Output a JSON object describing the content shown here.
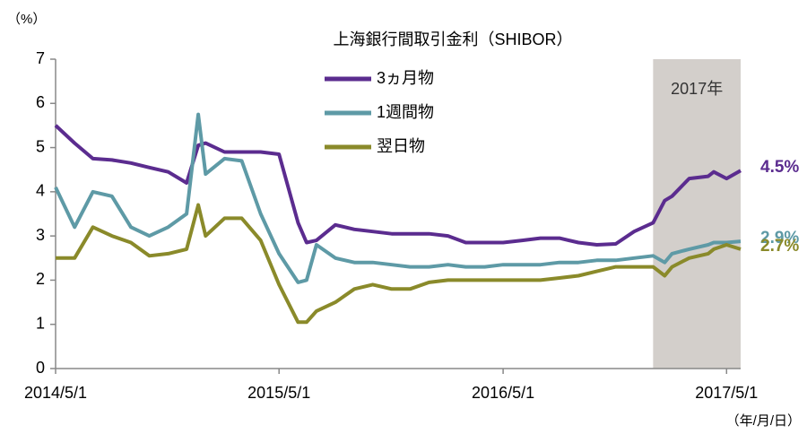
{
  "chart_data": {
    "type": "line",
    "title": "上海銀行間取引金利（SHIBOR）",
    "y_unit": "（%）",
    "x_unit": "（年/月/日）",
    "x": [
      "2014/5/1",
      "2014/6/1",
      "2014/7/1",
      "2014/8/1",
      "2014/9/1",
      "2014/10/1",
      "2014/11/1",
      "2014/12/1",
      "2014/12/20",
      "2015/1/1",
      "2015/2/1",
      "2015/3/1",
      "2015/4/1",
      "2015/5/1",
      "2015/6/1",
      "2015/6/15",
      "2015/7/1",
      "2015/8/1",
      "2015/9/1",
      "2015/10/1",
      "2015/11/1",
      "2015/12/1",
      "2016/1/1",
      "2016/2/1",
      "2016/3/1",
      "2016/4/1",
      "2016/5/1",
      "2016/6/1",
      "2016/7/1",
      "2016/8/1",
      "2016/9/1",
      "2016/10/1",
      "2016/11/1",
      "2016/12/1",
      "2017/1/1",
      "2017/1/20",
      "2017/2/1",
      "2017/3/1",
      "2017/4/1",
      "2017/4/10",
      "2017/5/1",
      "2017/5/24"
    ],
    "series": [
      {
        "name": "3ヵ月物",
        "color": "#5b2c8f",
        "end_label": "4.5%",
        "values": [
          5.5,
          5.1,
          4.75,
          4.72,
          4.65,
          4.55,
          4.45,
          4.2,
          5.05,
          5.1,
          4.9,
          4.9,
          4.9,
          4.85,
          3.3,
          2.85,
          2.9,
          3.25,
          3.15,
          3.1,
          3.05,
          3.05,
          3.05,
          3.0,
          2.85,
          2.85,
          2.85,
          2.9,
          2.95,
          2.95,
          2.85,
          2.8,
          2.82,
          3.1,
          3.3,
          3.8,
          3.9,
          4.3,
          4.35,
          4.45,
          4.3,
          4.48
        ]
      },
      {
        "name": "1週間物",
        "color": "#5e9aa6",
        "end_label": "2.9%",
        "values": [
          4.1,
          3.2,
          4.0,
          3.9,
          3.2,
          3.0,
          3.2,
          3.5,
          5.75,
          4.4,
          4.75,
          4.7,
          3.5,
          2.6,
          1.95,
          2.0,
          2.8,
          2.5,
          2.4,
          2.4,
          2.35,
          2.3,
          2.3,
          2.35,
          2.3,
          2.3,
          2.35,
          2.35,
          2.35,
          2.4,
          2.4,
          2.45,
          2.45,
          2.5,
          2.55,
          2.4,
          2.6,
          2.7,
          2.8,
          2.85,
          2.85,
          2.88
        ]
      },
      {
        "name": "翌日物",
        "color": "#8a8a2a",
        "end_label": "2.7%",
        "values": [
          2.5,
          2.5,
          3.2,
          3.0,
          2.85,
          2.55,
          2.6,
          2.7,
          3.7,
          3.0,
          3.4,
          3.4,
          2.9,
          1.9,
          1.05,
          1.05,
          1.3,
          1.5,
          1.8,
          1.9,
          1.8,
          1.8,
          1.95,
          2.0,
          2.0,
          2.0,
          2.0,
          2.0,
          2.0,
          2.05,
          2.1,
          2.2,
          2.3,
          2.3,
          2.3,
          2.1,
          2.3,
          2.5,
          2.6,
          2.7,
          2.8,
          2.7
        ]
      }
    ],
    "shade": {
      "from": "2017/1/1",
      "to": "2017/5/24",
      "label": "2017年",
      "color": "#d3cfcb"
    },
    "xlim": [
      "2014/5/1",
      "2017/5/24"
    ],
    "xticks": [
      "2014/5/1",
      "2015/5/1",
      "2016/5/1",
      "2017/5/1"
    ],
    "ylim": [
      0,
      7
    ],
    "yticks": [
      0,
      1,
      2,
      3,
      4,
      5,
      6,
      7
    ],
    "grid": false
  }
}
